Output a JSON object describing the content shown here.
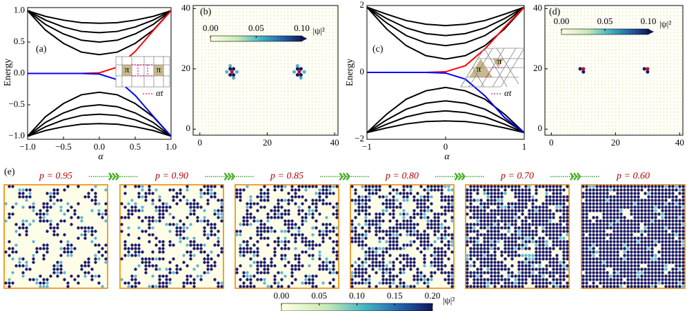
{
  "chart_data": [
    {
      "type": "line",
      "panel": "(a)",
      "ylabel": "Energy",
      "xlabel": "α",
      "x": [
        -1,
        -0.75,
        -0.5,
        -0.25,
        0,
        0.25,
        0.5,
        0.75,
        1
      ],
      "xlim": [
        -1,
        1
      ],
      "xticks": [
        {
          "value": -1,
          "label": "−1.0"
        },
        {
          "value": -0.5,
          "label": "−0.5"
        },
        {
          "value": 0,
          "label": "0.0"
        },
        0.5,
        {
          "value": 1,
          "label": "1.0"
        }
      ],
      "ylim": [
        -1.05,
        1.05
      ],
      "yticks": [
        {
          "value": -1,
          "label": "−1.0"
        },
        {
          "value": -0.5,
          "label": "−0.5"
        },
        {
          "value": 0,
          "label": "0.0"
        },
        0.5,
        {
          "value": 1,
          "label": "1.0"
        }
      ],
      "series": [
        {
          "color": "#000000",
          "values": [
            1,
            0.69,
            0.48,
            0.34,
            0.3,
            0.34,
            0.48,
            0.69,
            1
          ]
        },
        {
          "color": "#000000",
          "values": [
            1,
            0.78,
            0.63,
            0.53,
            0.5,
            0.53,
            0.63,
            0.78,
            1
          ]
        },
        {
          "color": "#000000",
          "values": [
            1,
            0.85,
            0.74,
            0.67,
            0.65,
            0.67,
            0.74,
            0.85,
            1
          ]
        },
        {
          "color": "#000000",
          "values": [
            1,
            0.91,
            0.85,
            0.81,
            0.8,
            0.81,
            0.85,
            0.91,
            1
          ]
        },
        {
          "color": "#000000",
          "values": [
            -1,
            -0.69,
            -0.48,
            -0.34,
            -0.3,
            -0.34,
            -0.48,
            -0.69,
            -1
          ]
        },
        {
          "color": "#000000",
          "values": [
            -1,
            -0.78,
            -0.63,
            -0.53,
            -0.5,
            -0.53,
            -0.63,
            -0.78,
            -1
          ]
        },
        {
          "color": "#000000",
          "values": [
            -1,
            -0.85,
            -0.74,
            -0.67,
            -0.65,
            -0.67,
            -0.74,
            -0.85,
            -1
          ]
        },
        {
          "color": "#000000",
          "values": [
            -1,
            -0.91,
            -0.85,
            -0.81,
            -0.8,
            -0.81,
            -0.85,
            -0.91,
            -1
          ]
        },
        {
          "color": "#ff0000",
          "values": [
            0,
            0,
            0,
            0,
            0.01,
            0.1,
            0.35,
            0.68,
            1
          ]
        },
        {
          "color": "#0000ff",
          "values": [
            0,
            0,
            0,
            0,
            -0.01,
            -0.1,
            -0.35,
            -0.68,
            -1
          ]
        }
      ],
      "inset_labels": [
        "π",
        "π"
      ],
      "inset_legend": "αt"
    },
    {
      "type": "scatter",
      "panel": "(b)",
      "xlim": [
        -2,
        41
      ],
      "xticks": [
        0,
        20,
        40
      ],
      "ylim": [
        -2,
        41
      ],
      "yticks": [
        0,
        20,
        40
      ],
      "series": [
        {
          "color": "#4fb6c9",
          "x": [
            8,
            11,
            9,
            10,
            28,
            31,
            29,
            30
          ],
          "y": [
            19,
            19,
            21,
            17,
            19,
            19,
            21,
            17
          ]
        },
        {
          "color": "#1b1a5e",
          "x": [
            9,
            10,
            9,
            10,
            29,
            30,
            29,
            30
          ],
          "y": [
            20,
            20,
            18,
            18,
            20,
            20,
            18,
            18
          ]
        },
        {
          "color": "#c0103a",
          "x": [
            9.5,
            29.5
          ],
          "y": [
            19,
            19
          ]
        }
      ],
      "colorbar": {
        "ticks": [
          {
            "value": 0,
            "label": "0.00"
          },
          {
            "value": 0.05,
            "label": "0.05"
          },
          {
            "value": 0.1,
            "label": "0.10"
          }
        ],
        "lim": [
          0,
          0.1
        ],
        "label": "|ψ|²"
      }
    },
    {
      "type": "line",
      "panel": "(c)",
      "ylabel": "Energy",
      "xlabel": "α",
      "x": [
        -1,
        -0.75,
        -0.5,
        -0.25,
        0,
        0.25,
        0.5,
        0.75,
        1
      ],
      "xlim": [
        -1,
        1
      ],
      "xticks": [
        {
          "value": -1,
          "label": "−1"
        },
        0,
        1
      ],
      "ylim": [
        -2,
        2
      ],
      "yticks": [
        {
          "value": -2,
          "label": "−2"
        },
        0,
        2
      ],
      "series": [
        {
          "color": "#000000",
          "values": [
            1.95,
            1.3,
            0.8,
            0.5,
            0.4,
            0.5,
            0.8,
            1.3,
            1.95
          ]
        },
        {
          "color": "#000000",
          "values": [
            1.95,
            1.48,
            1.1,
            0.88,
            0.8,
            0.88,
            1.1,
            1.48,
            1.95
          ]
        },
        {
          "color": "#000000",
          "values": [
            1.95,
            1.61,
            1.33,
            1.16,
            1.1,
            1.16,
            1.33,
            1.61,
            1.95
          ]
        },
        {
          "color": "#000000",
          "values": [
            1.95,
            1.74,
            1.55,
            1.44,
            1.4,
            1.44,
            1.55,
            1.74,
            1.95
          ]
        },
        {
          "color": "#000000",
          "values": [
            -1.8,
            -1.25,
            -0.8,
            -0.55,
            -0.45,
            -0.55,
            -0.8,
            -1.25,
            -1.8
          ]
        },
        {
          "color": "#000000",
          "values": [
            -1.8,
            -1.42,
            -1.1,
            -0.92,
            -0.85,
            -0.92,
            -1.1,
            -1.42,
            -1.8
          ]
        },
        {
          "color": "#000000",
          "values": [
            -1.8,
            -1.55,
            -1.33,
            -1.2,
            -1.15,
            -1.2,
            -1.33,
            -1.55,
            -1.8
          ]
        },
        {
          "color": "#000000",
          "values": [
            -1.8,
            -1.66,
            -1.54,
            -1.47,
            -1.45,
            -1.47,
            -1.54,
            -1.66,
            -1.8
          ]
        },
        {
          "color": "#ff0000",
          "values": [
            0,
            0,
            0,
            0,
            0.02,
            0.2,
            0.7,
            1.35,
            1.95
          ]
        },
        {
          "color": "#0000ff",
          "values": [
            0,
            0,
            0,
            0,
            -0.02,
            -0.2,
            -0.7,
            -1.35,
            -1.8
          ]
        }
      ],
      "inset_labels": [
        "π",
        "π"
      ],
      "inset_legend": "αt"
    },
    {
      "type": "scatter",
      "panel": "(d)",
      "xlim": [
        -2,
        41
      ],
      "xticks": [
        0,
        20,
        40
      ],
      "ylim": [
        -2,
        41
      ],
      "yticks": [
        0,
        20,
        40
      ],
      "series": [
        {
          "color": "#1b1a5e",
          "x": [
            9,
            10,
            29,
            30
          ],
          "y": [
            20,
            19,
            20,
            19
          ]
        },
        {
          "color": "#c0103a",
          "x": [
            10,
            30
          ],
          "y": [
            20,
            20
          ]
        }
      ],
      "colorbar": {
        "ticks": [
          {
            "value": 0,
            "label": "0.00"
          },
          {
            "value": 0.05,
            "label": "0.05"
          },
          {
            "value": 0.1,
            "label": "0.10"
          }
        ],
        "lim": [
          0,
          0.1
        ],
        "label": "|ψ|²"
      }
    },
    {
      "type": "lattice",
      "panel": "(e)",
      "labels": [
        "p = 0.95",
        "p = 0.90",
        "p = 0.85",
        "p = 0.80",
        "p = 0.70",
        "p = 0.60"
      ],
      "colorbar": {
        "ticks": [
          {
            "value": 0,
            "label": "0.00"
          },
          {
            "value": 0.05,
            "label": "0.05"
          },
          {
            "value": 0.1,
            "label": "0.10"
          },
          {
            "value": 0.15,
            "label": "0.15"
          },
          {
            "value": 0.2,
            "label": "0.20"
          }
        ],
        "lim": [
          0,
          0.2
        ],
        "label": "|ψ|²"
      }
    }
  ]
}
